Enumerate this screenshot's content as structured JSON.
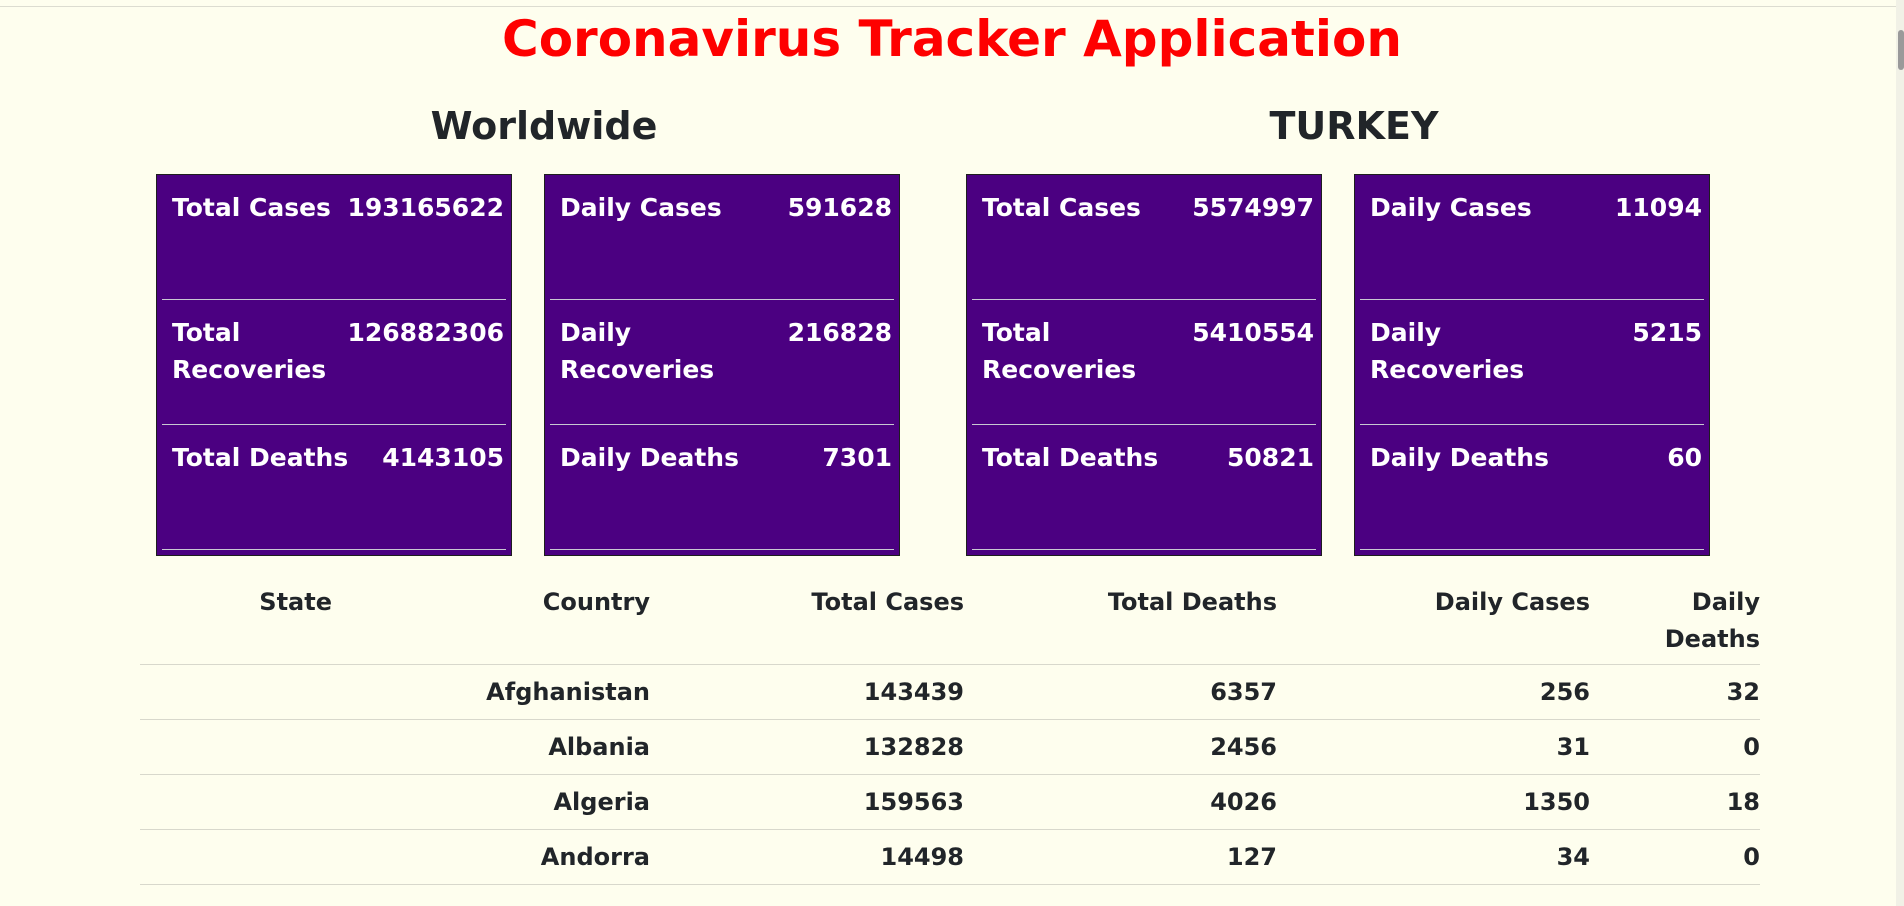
{
  "app": {
    "title": "Coronavirus Tracker Application"
  },
  "worldwide": {
    "title": "Worldwide",
    "total": [
      {
        "label": "Total Cases",
        "value": "193165622"
      },
      {
        "label": "Total Recoveries",
        "value": "126882306"
      },
      {
        "label": "Total Deaths",
        "value": "4143105"
      }
    ],
    "daily": [
      {
        "label": "Daily Cases",
        "value": "591628"
      },
      {
        "label": "Daily Recoveries",
        "value": "216828"
      },
      {
        "label": "Daily Deaths",
        "value": "7301"
      }
    ]
  },
  "turkey": {
    "title": "TURKEY",
    "total": [
      {
        "label": "Total Cases",
        "value": "5574997"
      },
      {
        "label": "Total Recoveries",
        "value": "5410554"
      },
      {
        "label": "Total Deaths",
        "value": "50821"
      }
    ],
    "daily": [
      {
        "label": "Daily Cases",
        "value": "11094"
      },
      {
        "label": "Daily Recoveries",
        "value": "5215"
      },
      {
        "label": "Daily Deaths",
        "value": "60"
      }
    ]
  },
  "table": {
    "headers": [
      "State",
      "Country",
      "Total Cases",
      "Total Deaths",
      "Daily Cases",
      "Daily Deaths"
    ],
    "rows": [
      {
        "state": "",
        "country": "Afghanistan",
        "total_cases": "143439",
        "total_deaths": "6357",
        "daily_cases": "256",
        "daily_deaths": "32"
      },
      {
        "state": "",
        "country": "Albania",
        "total_cases": "132828",
        "total_deaths": "2456",
        "daily_cases": "31",
        "daily_deaths": "0"
      },
      {
        "state": "",
        "country": "Algeria",
        "total_cases": "159563",
        "total_deaths": "4026",
        "daily_cases": "1350",
        "daily_deaths": "18"
      },
      {
        "state": "",
        "country": "Andorra",
        "total_cases": "14498",
        "total_deaths": "127",
        "daily_cases": "34",
        "daily_deaths": "0"
      }
    ]
  }
}
